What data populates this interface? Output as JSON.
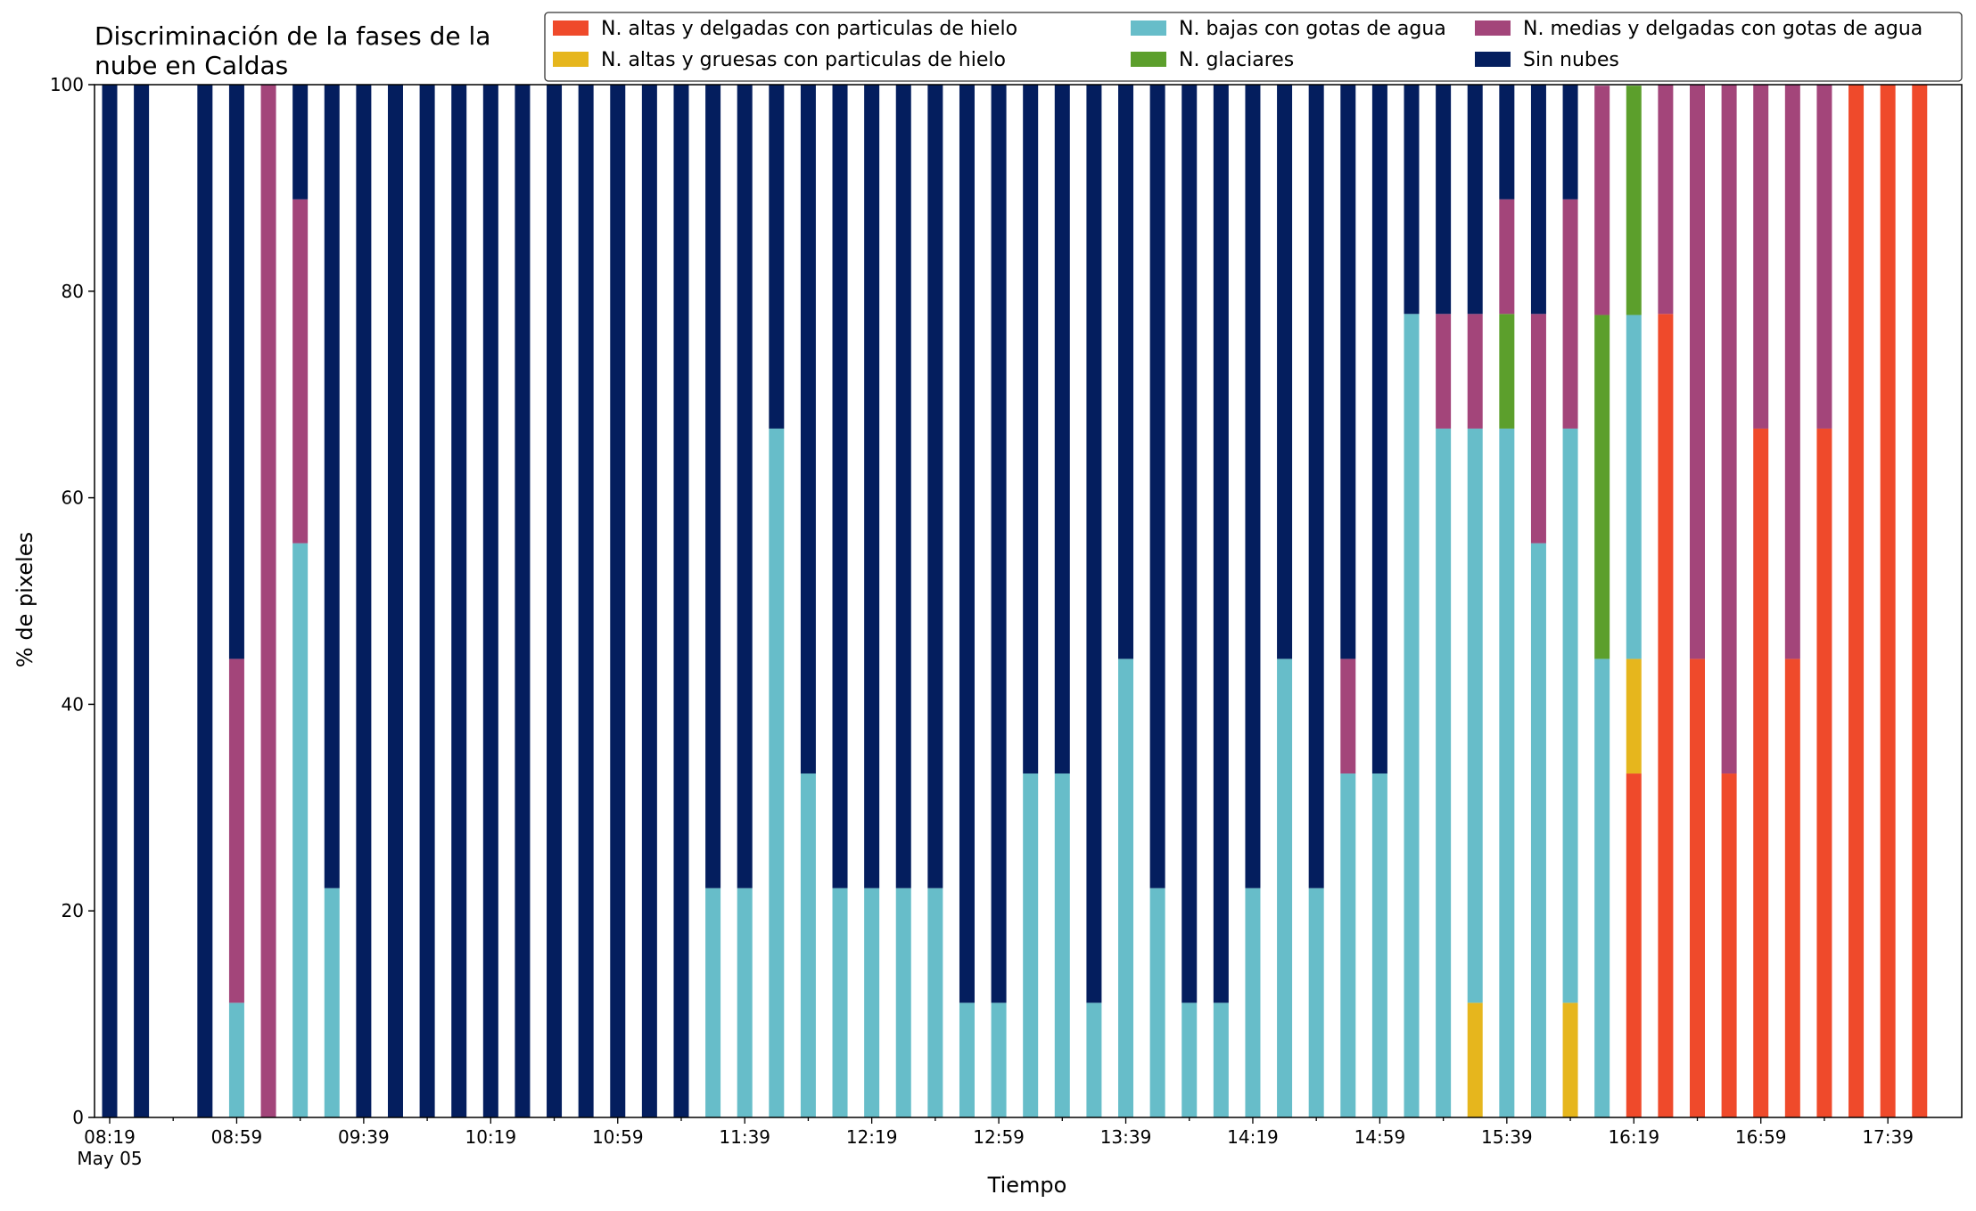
{
  "chart_data": {
    "type": "bar",
    "stacked": true,
    "title_lines": [
      "Discriminación de la fases de la",
      "nube en Caldas"
    ],
    "xlabel": "Tiempo",
    "ylabel": "% de pixeles",
    "ylim": [
      0,
      100
    ],
    "yticks": [
      "0",
      "20",
      "40",
      "60",
      "80",
      "100"
    ],
    "grid": false,
    "legend_position": "top-right",
    "x_tick_labels": [
      "08:19",
      "08:59",
      "09:39",
      "10:19",
      "10:59",
      "11:39",
      "12:19",
      "12:59",
      "13:39",
      "14:19",
      "14:59",
      "15:39",
      "16:19",
      "16:59",
      "17:39"
    ],
    "x_tick_date": "May 05",
    "categories": [
      "08:19",
      "08:29",
      "08:39",
      "08:49",
      "08:59",
      "09:09",
      "09:19",
      "09:29",
      "09:39",
      "09:49",
      "09:59",
      "10:09",
      "10:19",
      "10:29",
      "10:39",
      "10:49",
      "10:59",
      "11:09",
      "11:19",
      "11:29",
      "11:39",
      "11:49",
      "11:59",
      "12:09",
      "12:19",
      "12:29",
      "12:39",
      "12:49",
      "12:59",
      "13:09",
      "13:19",
      "13:29",
      "13:39",
      "13:49",
      "13:59",
      "14:09",
      "14:19",
      "14:29",
      "14:39",
      "14:49",
      "14:59",
      "15:09",
      "15:19",
      "15:29",
      "15:39",
      "15:49",
      "15:59",
      "16:09",
      "16:19",
      "16:29",
      "16:39",
      "16:49",
      "16:59",
      "17:09",
      "17:19",
      "17:29",
      "17:39",
      "17:49"
    ],
    "series": [
      {
        "name": "N. altas y delgadas con particulas de hielo",
        "color": "#ef4a2b",
        "values": [
          0,
          0,
          null,
          0,
          0,
          0,
          0,
          0,
          0,
          0,
          0,
          0,
          0,
          0,
          0,
          0,
          0,
          0,
          0,
          0,
          0,
          0,
          0,
          0,
          0,
          0,
          0,
          0,
          0,
          0,
          0,
          0,
          0,
          0,
          0,
          0,
          0,
          0,
          0,
          0,
          0,
          0,
          0,
          0,
          0,
          0,
          0,
          0,
          33.3,
          77.8,
          44.4,
          33.3,
          66.7,
          44.4,
          66.7,
          100,
          100,
          100
        ]
      },
      {
        "name": "N. altas y gruesas con particulas de hielo",
        "color": "#e6b61d",
        "values": [
          0,
          0,
          null,
          0,
          0,
          0,
          0,
          0,
          0,
          0,
          0,
          0,
          0,
          0,
          0,
          0,
          0,
          0,
          0,
          0,
          0,
          0,
          0,
          0,
          0,
          0,
          0,
          0,
          0,
          0,
          0,
          0,
          0,
          0,
          0,
          0,
          0,
          0,
          0,
          0,
          0,
          0,
          0,
          11.1,
          0,
          0,
          11.1,
          0,
          11.1,
          0,
          0,
          0,
          0,
          0,
          0,
          0,
          0,
          0
        ]
      },
      {
        "name": "N. bajas con gotas de agua",
        "color": "#67bdc9",
        "values": [
          0,
          0,
          null,
          0,
          11.1,
          0,
          55.6,
          22.2,
          0,
          0,
          0,
          0,
          0,
          0,
          0,
          0,
          0,
          0,
          0,
          22.2,
          22.2,
          66.7,
          33.3,
          22.2,
          22.2,
          22.2,
          22.2,
          11.1,
          11.1,
          33.3,
          33.3,
          11.1,
          44.4,
          22.2,
          11.1,
          11.1,
          22.2,
          44.4,
          22.2,
          33.3,
          33.3,
          77.8,
          66.7,
          55.6,
          66.7,
          55.6,
          55.6,
          44.4,
          33.3,
          0,
          0,
          0,
          0,
          0,
          0,
          0,
          0,
          0
        ]
      },
      {
        "name": "N. glaciares",
        "color": "#5c9f2c",
        "values": [
          0,
          0,
          null,
          0,
          0,
          0,
          0,
          0,
          0,
          0,
          0,
          0,
          0,
          0,
          0,
          0,
          0,
          0,
          0,
          0,
          0,
          0,
          0,
          0,
          0,
          0,
          0,
          0,
          0,
          0,
          0,
          0,
          0,
          0,
          0,
          0,
          0,
          0,
          0,
          0,
          0,
          0,
          0,
          0,
          11.1,
          0,
          0,
          33.3,
          22.2,
          0,
          0,
          0,
          0,
          0,
          0,
          0,
          0,
          0
        ]
      },
      {
        "name": "N. medias y delgadas con gotas de agua",
        "color": "#a3457a",
        "values": [
          0,
          0,
          null,
          0,
          33.3,
          100,
          33.3,
          0,
          0,
          0,
          0,
          0,
          0,
          0,
          0,
          0,
          0,
          0,
          0,
          0,
          0,
          0,
          0,
          0,
          0,
          0,
          0,
          0,
          0,
          0,
          0,
          0,
          0,
          0,
          0,
          0,
          0,
          0,
          0,
          11.1,
          0,
          0,
          11.1,
          11.1,
          11.1,
          22.2,
          22.2,
          22.2,
          0,
          22.2,
          55.6,
          66.7,
          33.3,
          55.6,
          33.3,
          0,
          0,
          0
        ]
      },
      {
        "name": "Sin nubes",
        "color": "#041e5e",
        "values": [
          100,
          100,
          null,
          100,
          55.6,
          0,
          11.1,
          77.8,
          100,
          100,
          100,
          100,
          100,
          100,
          100,
          100,
          100,
          100,
          100,
          77.8,
          77.8,
          33.3,
          66.7,
          77.8,
          77.8,
          77.8,
          77.8,
          88.9,
          88.9,
          66.7,
          66.7,
          88.9,
          55.6,
          77.8,
          88.9,
          88.9,
          77.8,
          55.6,
          77.8,
          55.6,
          66.7,
          22.2,
          22.2,
          22.2,
          11.1,
          22.2,
          11.1,
          0,
          0,
          0,
          0,
          0,
          0,
          0,
          0,
          0,
          0,
          0
        ]
      }
    ]
  }
}
